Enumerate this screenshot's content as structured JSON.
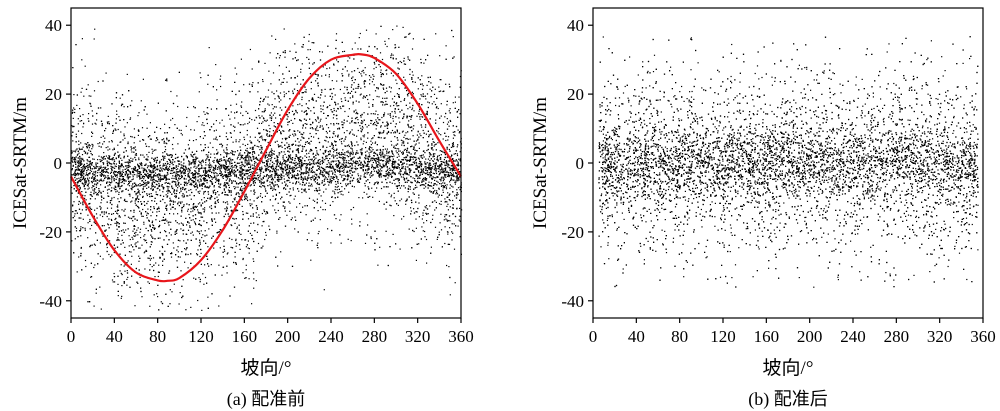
{
  "chart_data": [
    {
      "type": "scatter",
      "caption": "(a) 配准前",
      "xlabel": "坡向/°",
      "ylabel": "ICESat-SRTM/m",
      "xlim": [
        0,
        360
      ],
      "ylim": [
        -45,
        45
      ],
      "xticks": [
        0,
        40,
        80,
        120,
        160,
        200,
        240,
        280,
        320,
        360
      ],
      "yticks": [
        -40,
        -20,
        0,
        20,
        40
      ],
      "grid": false,
      "point_color": "#000000",
      "series": [
        {
          "kind": "points",
          "distribution": {
            "x_range": [
              0,
              360
            ],
            "dense_band_center": [
              [
                0,
                -2
              ],
              [
                90,
                -3
              ],
              [
                180,
                -2
              ],
              [
                270,
                -1
              ],
              [
                360,
                -2
              ]
            ],
            "dense_band_sd": 3,
            "wide_spread_center_follows_fit_curve": true,
            "wide_spread_sd": 14,
            "y_clip": [
              -43,
              40
            ]
          }
        },
        {
          "kind": "line",
          "color": "#e8161b",
          "x": [
            0,
            20,
            40,
            60,
            80,
            89,
            100,
            120,
            140,
            160,
            180,
            200,
            220,
            240,
            260,
            269,
            280,
            300,
            320,
            340,
            360
          ],
          "y": [
            -3.9,
            -15.4,
            -25.3,
            -31.8,
            -34.1,
            -34.2,
            -33.4,
            -28.2,
            -19.5,
            -8.3,
            3.7,
            15.4,
            24.6,
            30.0,
            31.4,
            31.5,
            30.5,
            25.9,
            17.2,
            6.4,
            -3.9
          ]
        }
      ]
    },
    {
      "type": "scatter",
      "caption": "(b) 配准后",
      "xlabel": "坡向/°",
      "ylabel": "ICESat-SRTM/m",
      "xlim": [
        0,
        360
      ],
      "ylim": [
        -45,
        45
      ],
      "xticks": [
        0,
        40,
        80,
        120,
        160,
        200,
        240,
        280,
        320,
        360
      ],
      "yticks": [
        -40,
        -20,
        0,
        20,
        40
      ],
      "grid": false,
      "point_color": "#000000",
      "series": [
        {
          "kind": "points",
          "distribution": {
            "x_range": [
              5,
              355
            ],
            "dense_band_center": [
              [
                5,
                0
              ],
              [
                355,
                0
              ]
            ],
            "dense_band_sd": 5,
            "wide_spread_sd": 14,
            "y_clip": [
              -37,
              37
            ]
          }
        }
      ]
    }
  ]
}
